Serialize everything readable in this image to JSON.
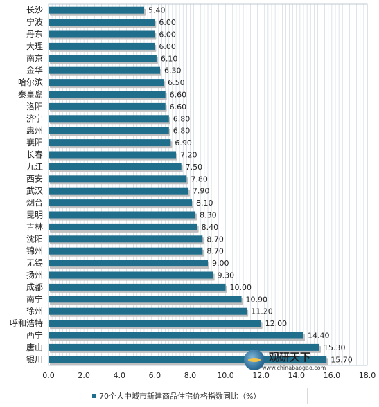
{
  "chart_data": {
    "type": "bar",
    "orientation": "horizontal",
    "categories": [
      "长沙",
      "宁波",
      "丹东",
      "大理",
      "南京",
      "金华",
      "哈尔滨",
      "秦皇岛",
      "洛阳",
      "济宁",
      "惠州",
      "襄阳",
      "长春",
      "九江",
      "西安",
      "武汉",
      "烟台",
      "昆明",
      "吉林",
      "沈阳",
      "锦州",
      "无锡",
      "扬州",
      "成都",
      "南宁",
      "徐州",
      "呼和浩特",
      "西宁",
      "唐山",
      "银川"
    ],
    "series": [
      {
        "name": "70个大中城市新建商品住宅价格指数同比（%）",
        "values": [
          5.4,
          6.0,
          6.0,
          6.0,
          6.1,
          6.3,
          6.5,
          6.6,
          6.6,
          6.8,
          6.8,
          6.9,
          7.2,
          7.5,
          7.8,
          7.9,
          8.1,
          8.3,
          8.4,
          8.7,
          8.7,
          9.0,
          9.3,
          10.0,
          10.9,
          11.2,
          12.0,
          14.4,
          15.3,
          15.7
        ],
        "labels": [
          "5.40",
          "6.00",
          "6.00",
          "6.00",
          "6.10",
          "6.30",
          "6.50",
          "6.60",
          "6.60",
          "6.80",
          "6.80",
          "6.90",
          "7.20",
          "7.50",
          "7.80",
          "7.90",
          "8.10",
          "8.30",
          "8.40",
          "8.70",
          "8.70",
          "9.00",
          "9.30",
          "10.00",
          "10.90",
          "11.20",
          "12.00",
          "14.40",
          "15.30",
          "15.70"
        ]
      }
    ],
    "xlim": [
      0,
      18
    ],
    "xticks": [
      "0.0",
      "2.0",
      "4.0",
      "6.0",
      "8.0",
      "10.0",
      "12.0",
      "14.0",
      "16.0",
      "18.0"
    ],
    "grid": true,
    "legend_position": "bottom",
    "colors": {
      "bar": "#1f6e8c",
      "shadow": "#bfbfbf",
      "grid": "#c9d3dc"
    }
  },
  "watermark": {
    "brand": "观研天下",
    "url": "www.chinabaogao.com"
  }
}
